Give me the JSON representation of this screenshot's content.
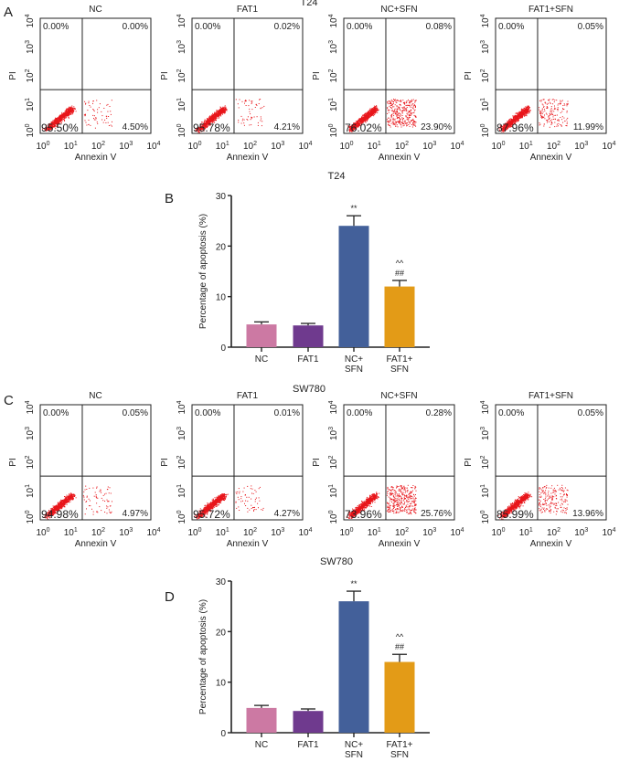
{
  "chart_data": [
    {
      "panel": "A",
      "type": "scatter",
      "title": "T24",
      "xlabel": "Annexin V",
      "ylabel": "PI",
      "axis_ticks": [
        "0",
        "1",
        "2",
        "3",
        "4"
      ],
      "tick_base": "10",
      "plots": [
        {
          "name": "NC",
          "quadrants": {
            "ul": "0.00%",
            "ur": "0.00%",
            "ll": "95.50%",
            "lr": "4.50%"
          }
        },
        {
          "name": "FAT1",
          "quadrants": {
            "ul": "0.00%",
            "ur": "0.02%",
            "ll": "95.78%",
            "lr": "4.21%"
          }
        },
        {
          "name": "NC+SFN",
          "quadrants": {
            "ul": "0.00%",
            "ur": "0.08%",
            "ll": "76.02%",
            "lr": "23.90%"
          }
        },
        {
          "name": "FAT1+SFN",
          "quadrants": {
            "ul": "0.00%",
            "ur": "0.05%",
            "ll": "87.96%",
            "lr": "11.99%"
          }
        }
      ]
    },
    {
      "panel": "B",
      "type": "bar",
      "title": "T24",
      "ylabel": "Percentage of apoptosis (%)",
      "ylim": [
        0,
        30
      ],
      "yticks": [
        0,
        10,
        20,
        30
      ],
      "categories": [
        [
          "NC"
        ],
        [
          "FAT1"
        ],
        [
          "NC+",
          "SFN"
        ],
        [
          "FAT1+",
          "SFN"
        ]
      ],
      "values": [
        4.5,
        4.3,
        24.0,
        12.0
      ],
      "errors": [
        0.5,
        0.4,
        2.0,
        1.2
      ],
      "annotations": [
        [],
        [],
        [
          "**"
        ],
        [
          "^^",
          "##"
        ]
      ],
      "colors": [
        "#cc79a3",
        "#6f3a8e",
        "#43609a",
        "#e39b17"
      ]
    },
    {
      "panel": "C",
      "type": "scatter",
      "title": "SW780",
      "xlabel": "Annexin V",
      "ylabel": "PI",
      "axis_ticks": [
        "0",
        "1",
        "2",
        "3",
        "4"
      ],
      "tick_base": "10",
      "plots": [
        {
          "name": "NC",
          "quadrants": {
            "ul": "0.00%",
            "ur": "0.05%",
            "ll": "94.98%",
            "lr": "4.97%"
          }
        },
        {
          "name": "FAT1",
          "quadrants": {
            "ul": "0.00%",
            "ur": "0.01%",
            "ll": "95.72%",
            "lr": "4.27%"
          }
        },
        {
          "name": "NC+SFN",
          "quadrants": {
            "ul": "0.00%",
            "ur": "0.28%",
            "ll": "73.96%",
            "lr": "25.76%"
          }
        },
        {
          "name": "FAT1+SFN",
          "quadrants": {
            "ul": "0.00%",
            "ur": "0.05%",
            "ll": "85.99%",
            "lr": "13.96%"
          }
        }
      ]
    },
    {
      "panel": "D",
      "type": "bar",
      "title": "SW780",
      "ylabel": "Percentage of apoptosis (%)",
      "ylim": [
        0,
        30
      ],
      "yticks": [
        0,
        10,
        20,
        30
      ],
      "categories": [
        [
          "NC"
        ],
        [
          "FAT1"
        ],
        [
          "NC+",
          "SFN"
        ],
        [
          "FAT1+",
          "SFN"
        ]
      ],
      "values": [
        4.9,
        4.3,
        26.0,
        14.0
      ],
      "errors": [
        0.5,
        0.4,
        2.0,
        1.5
      ],
      "annotations": [
        [],
        [],
        [
          "**"
        ],
        [
          "^^",
          "##"
        ]
      ],
      "colors": [
        "#cc79a3",
        "#6f3a8e",
        "#43609a",
        "#e39b17"
      ]
    }
  ],
  "colors": {
    "dots": "#e8161b",
    "axis": "#222222"
  }
}
